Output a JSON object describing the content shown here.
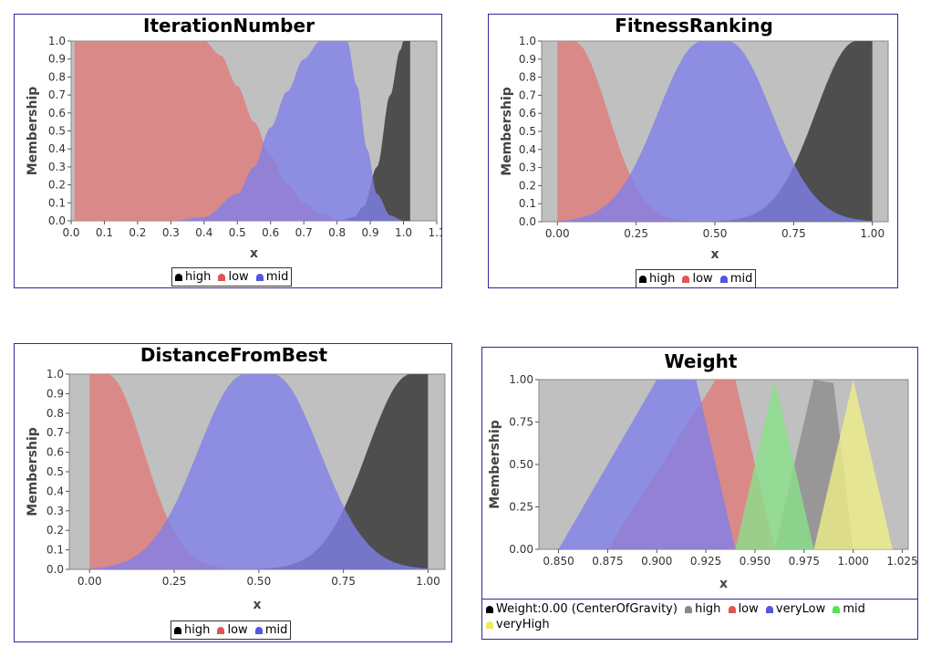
{
  "chart_data": [
    {
      "type": "area",
      "title": "IterationNumber",
      "xlabel": "x",
      "ylabel": "Membership",
      "xlim": [
        0.0,
        1.1
      ],
      "ylim": [
        0.0,
        1.0
      ],
      "x_ticks": [
        "0.0",
        "0.1",
        "0.2",
        "0.3",
        "0.4",
        "0.5",
        "0.6",
        "0.7",
        "0.8",
        "0.9",
        "1.0",
        "1.1"
      ],
      "y_ticks": [
        "0.0",
        "0.1",
        "0.2",
        "0.3",
        "0.4",
        "0.5",
        "0.6",
        "0.7",
        "0.8",
        "0.9",
        "1.0"
      ],
      "grid": false,
      "legend_position": "bottom",
      "series": [
        {
          "name": "high",
          "color": "#3a3a3a",
          "shape": "gbell",
          "points": [
            [
              0.8,
              0
            ],
            [
              0.85,
              0.02
            ],
            [
              0.88,
              0.08
            ],
            [
              0.92,
              0.3
            ],
            [
              0.96,
              0.7
            ],
            [
              0.99,
              0.95
            ],
            [
              1.0,
              1.0
            ],
            [
              1.02,
              1.0
            ]
          ]
        },
        {
          "name": "low",
          "color": "#e07a7a",
          "shape": "gbell",
          "points": [
            [
              0.01,
              1.0
            ],
            [
              0.4,
              1.0
            ],
            [
              0.45,
              0.92
            ],
            [
              0.5,
              0.75
            ],
            [
              0.55,
              0.55
            ],
            [
              0.6,
              0.36
            ],
            [
              0.65,
              0.2
            ],
            [
              0.7,
              0.1
            ],
            [
              0.75,
              0.04
            ],
            [
              0.8,
              0.01
            ],
            [
              0.85,
              0
            ]
          ]
        },
        {
          "name": "mid",
          "color": "#7f7fe8",
          "shape": "gbell",
          "points": [
            [
              0.3,
              0
            ],
            [
              0.4,
              0.02
            ],
            [
              0.5,
              0.15
            ],
            [
              0.55,
              0.3
            ],
            [
              0.6,
              0.52
            ],
            [
              0.65,
              0.72
            ],
            [
              0.7,
              0.9
            ],
            [
              0.75,
              1.0
            ],
            [
              0.83,
              1.0
            ],
            [
              0.86,
              0.75
            ],
            [
              0.89,
              0.4
            ],
            [
              0.92,
              0.15
            ],
            [
              0.96,
              0.03
            ],
            [
              1.0,
              0
            ]
          ]
        }
      ]
    },
    {
      "type": "area",
      "title": "FitnessRanking",
      "xlabel": "x",
      "ylabel": "Membership",
      "xlim": [
        -0.05,
        1.05
      ],
      "ylim": [
        0.0,
        1.0
      ],
      "x_ticks": [
        "0.00",
        "0.25",
        "0.50",
        "0.75",
        "1.00"
      ],
      "y_ticks": [
        "0.0",
        "0.1",
        "0.2",
        "0.3",
        "0.4",
        "0.5",
        "0.6",
        "0.7",
        "0.8",
        "0.9",
        "1.0"
      ],
      "grid": false,
      "legend_position": "bottom",
      "series": [
        {
          "name": "high",
          "color": "#3a3a3a",
          "shape": "gauss",
          "center": 0.95,
          "width": 0.13,
          "plateau": [
            0.95,
            1.0
          ],
          "range": [
            0.5,
            1.0
          ]
        },
        {
          "name": "low",
          "color": "#e07a7a",
          "shape": "gauss",
          "center": 0.05,
          "width": 0.11,
          "plateau": [
            0.0,
            0.05
          ],
          "range": [
            0.0,
            0.55
          ]
        },
        {
          "name": "mid",
          "color": "#7f7fe8",
          "shape": "gauss",
          "center": 0.5,
          "width": 0.14,
          "plateau": [
            0.46,
            0.54
          ],
          "range": [
            0.0,
            1.0
          ]
        }
      ]
    },
    {
      "type": "area",
      "title": "DistanceFromBest",
      "xlabel": "x",
      "ylabel": "Membership",
      "xlim": [
        -0.06,
        1.05
      ],
      "ylim": [
        0.0,
        1.0
      ],
      "x_ticks": [
        "0.00",
        "0.25",
        "0.50",
        "0.75",
        "1.00"
      ],
      "y_ticks": [
        "0.0",
        "0.1",
        "0.2",
        "0.3",
        "0.4",
        "0.5",
        "0.6",
        "0.7",
        "0.8",
        "0.9",
        "1.0"
      ],
      "grid": false,
      "legend_position": "bottom",
      "series": [
        {
          "name": "high",
          "color": "#3a3a3a",
          "shape": "gauss",
          "center": 0.95,
          "width": 0.13,
          "plateau": [
            0.95,
            1.0
          ],
          "range": [
            0.5,
            1.0
          ]
        },
        {
          "name": "low",
          "color": "#e07a7a",
          "shape": "gauss",
          "center": 0.05,
          "width": 0.11,
          "plateau": [
            0.0,
            0.05
          ],
          "range": [
            0.0,
            0.55
          ]
        },
        {
          "name": "mid",
          "color": "#7f7fe8",
          "shape": "gauss",
          "center": 0.5,
          "width": 0.14,
          "plateau": [
            0.46,
            0.54
          ],
          "range": [
            0.0,
            1.0
          ]
        }
      ]
    },
    {
      "type": "area",
      "title": "Weight",
      "xlabel": "x",
      "ylabel": "Membership",
      "xlim": [
        0.84,
        1.028
      ],
      "ylim": [
        0.0,
        1.0
      ],
      "x_ticks": [
        "0.850",
        "0.875",
        "0.900",
        "0.925",
        "0.950",
        "0.975",
        "1.000",
        "1.025"
      ],
      "y_ticks": [
        "0.00",
        "0.25",
        "0.50",
        "0.75",
        "1.00"
      ],
      "grid": false,
      "legend_position": "bottom",
      "legend_extra": "Weight:0.00 (CenterOfGravity)",
      "series": [
        {
          "name": "high",
          "color": "#8c8c8c",
          "shape": "trapezoid",
          "points": [
            [
              0.96,
              0
            ],
            [
              0.98,
              1.0
            ],
            [
              0.99,
              0.98
            ],
            [
              1.0,
              0
            ]
          ]
        },
        {
          "name": "low",
          "color": "#e07a7a",
          "shape": "trapezoid",
          "points": [
            [
              0.875,
              0
            ],
            [
              0.93,
              1.0
            ],
            [
              0.94,
              1.0
            ],
            [
              0.96,
              0
            ]
          ]
        },
        {
          "name": "veryLow",
          "color": "#7f7fe8",
          "shape": "trapezoid",
          "points": [
            [
              0.85,
              0
            ],
            [
              0.9,
              1.0
            ],
            [
              0.92,
              1.0
            ],
            [
              0.94,
              0
            ]
          ]
        },
        {
          "name": "mid",
          "color": "#8ae08a",
          "shape": "triangle",
          "points": [
            [
              0.94,
              0
            ],
            [
              0.96,
              1.0
            ],
            [
              0.98,
              0
            ]
          ]
        },
        {
          "name": "veryHigh",
          "color": "#eeee88",
          "shape": "triangle",
          "points": [
            [
              0.98,
              0
            ],
            [
              1.0,
              1.0
            ],
            [
              1.02,
              0
            ]
          ]
        }
      ]
    }
  ],
  "legends": [
    {
      "items": [
        {
          "label": "high",
          "color": "#000000"
        },
        {
          "label": "low",
          "color": "#e05555"
        },
        {
          "label": "mid",
          "color": "#5555e0"
        }
      ]
    },
    {
      "items": [
        {
          "label": "high",
          "color": "#000000"
        },
        {
          "label": "low",
          "color": "#e05555"
        },
        {
          "label": "mid",
          "color": "#5555e0"
        }
      ]
    },
    {
      "items": [
        {
          "label": "high",
          "color": "#000000"
        },
        {
          "label": "low",
          "color": "#e05555"
        },
        {
          "label": "mid",
          "color": "#5555e0"
        }
      ]
    },
    {
      "extra_label": "Weight:0.00 (CenterOfGravity)",
      "extra_color": "#000000",
      "items": [
        {
          "label": "high",
          "color": "#888888"
        },
        {
          "label": "low",
          "color": "#e05555"
        },
        {
          "label": "veryLow",
          "color": "#5555e0"
        },
        {
          "label": "mid",
          "color": "#55e055"
        },
        {
          "label": "veryHigh",
          "color": "#eeee55"
        }
      ]
    }
  ]
}
